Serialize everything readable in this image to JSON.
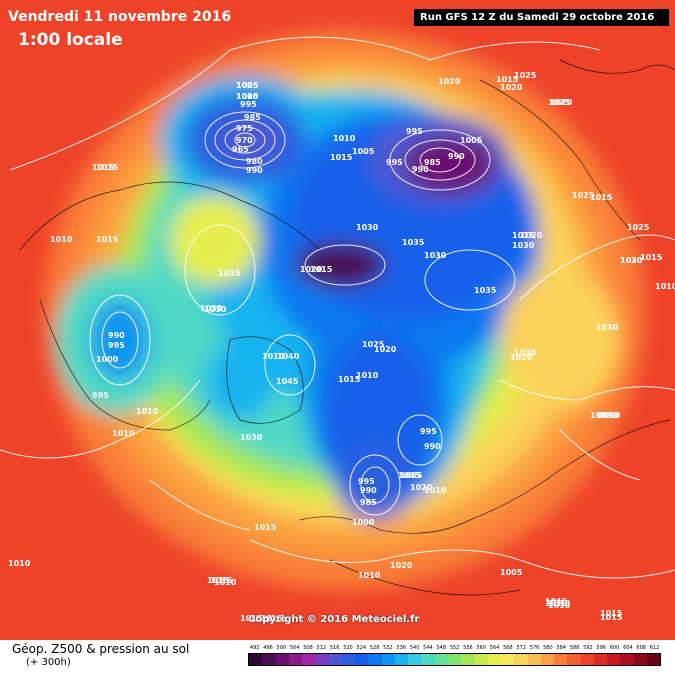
{
  "header": {
    "date": "Vendredi 11 novembre 2016",
    "time": "1:00 locale",
    "run": "Run GFS 12 Z du Samedi 29 octobre 2016"
  },
  "copyright": "Copyright © 2016 Meteociel.fr",
  "footer": {
    "product": "Géop. Z500 & pression au sol",
    "lead": "(+ 300h)"
  },
  "scale": {
    "labels": [
      "492",
      "496",
      "500",
      "504",
      "508",
      "512",
      "516",
      "520",
      "524",
      "528",
      "532",
      "536",
      "540",
      "544",
      "548",
      "552",
      "556",
      "560",
      "564",
      "568",
      "572",
      "576",
      "580",
      "584",
      "588",
      "592",
      "596",
      "600",
      "604",
      "608",
      "612"
    ],
    "colors": [
      "#2b0a2f",
      "#4a0d4f",
      "#6b1071",
      "#8a1a8e",
      "#a626a8",
      "#7a3fbf",
      "#4f58d1",
      "#2b5fe0",
      "#1460ea",
      "#0a78f0",
      "#0a95f2",
      "#19b3f0",
      "#35cbe0",
      "#4fd9c4",
      "#62e09a",
      "#7ee46e",
      "#a4e655",
      "#c8ea4a",
      "#e6ee50",
      "#f7e85a",
      "#fad55a",
      "#fbbd4e",
      "#fba041",
      "#f97f37",
      "#f45f30",
      "#ee4229",
      "#e02a26",
      "#c81a23",
      "#aa1020",
      "#8a081b",
      "#6a0416"
    ]
  },
  "map_labels": [
    "1005",
    "1000",
    "995",
    "985",
    "975",
    "970",
    "965",
    "980",
    "990",
    "1015",
    "1010",
    "1020",
    "995",
    "1005",
    "990",
    "985",
    "990",
    "995",
    "1005",
    "1015",
    "1020",
    "1025",
    "1030",
    "1035",
    "1030",
    "1025",
    "1015",
    "1020",
    "1015",
    "1025",
    "1030",
    "1020",
    "1010",
    "1015",
    "1030",
    "1025",
    "1035",
    "1040",
    "1045",
    "1030",
    "1030",
    "1025",
    "1020",
    "1015",
    "1010",
    "995",
    "990",
    "1005",
    "995",
    "990",
    "985",
    "1000",
    "1005",
    "1010",
    "1015",
    "1020",
    "1010",
    "1010",
    "1010",
    "1015",
    "1015",
    "1010",
    "1005",
    "995",
    "1000",
    "990",
    "995",
    "1010",
    "1010",
    "1015",
    "1030",
    "1035",
    "1030",
    "1010",
    "1015",
    "1015",
    "1015",
    "1015",
    "1010",
    "1015",
    "1015",
    "1020",
    "1020",
    "1015",
    "1015",
    "1030",
    "1030",
    "1020",
    "1010",
    "1010",
    "1015",
    "1010",
    "1010",
    "1015",
    "1020",
    "1025",
    "1015"
  ]
}
